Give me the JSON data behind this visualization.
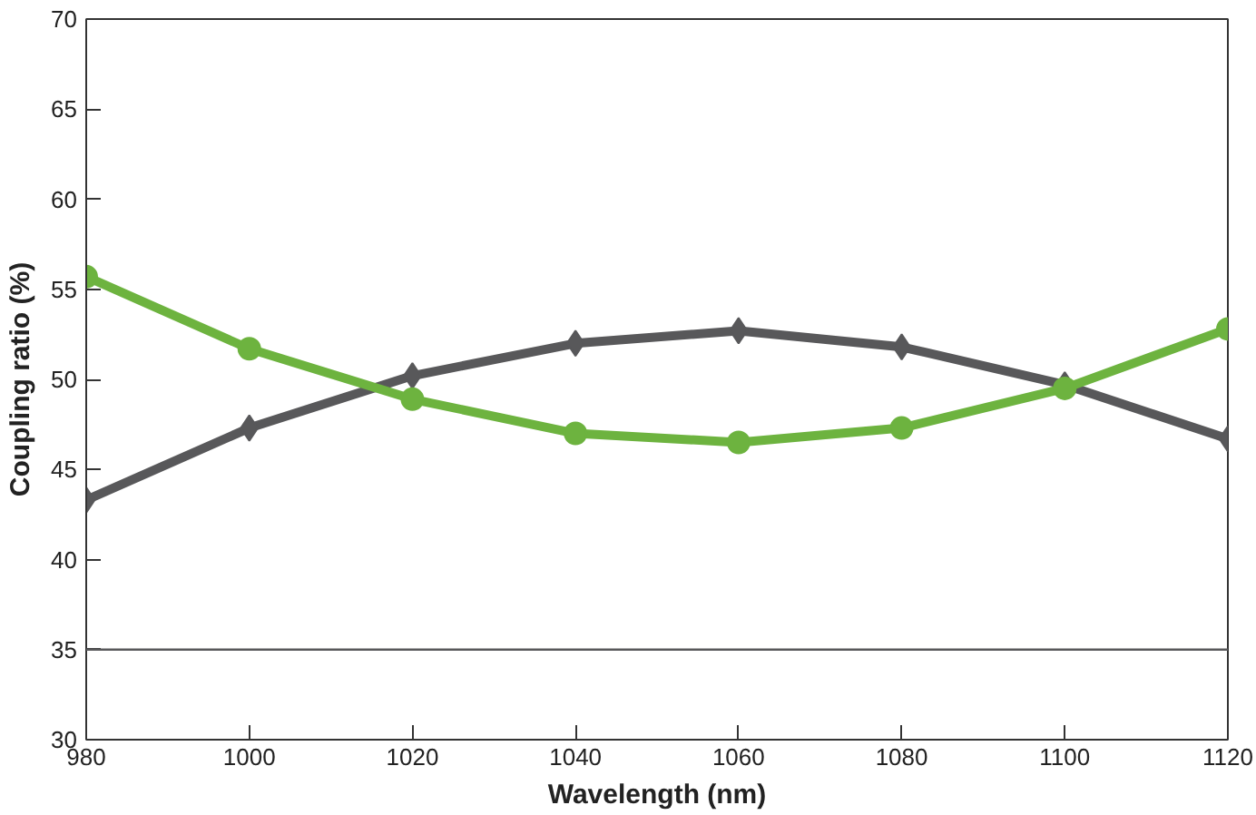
{
  "chart_data": {
    "type": "line",
    "xlabel": "Wavelength (nm)",
    "ylabel": "Coupling ratio (%)",
    "x": [
      980,
      1000,
      1020,
      1040,
      1060,
      1080,
      1100,
      1120
    ],
    "series": [
      {
        "color": "#58585a",
        "marker": "diamond",
        "values": [
          43.3,
          47.3,
          50.2,
          52.0,
          52.7,
          51.8,
          49.7,
          46.7
        ]
      },
      {
        "color": "#6db33f",
        "marker": "circle",
        "values": [
          55.7,
          51.7,
          48.9,
          47.0,
          46.5,
          47.3,
          49.5,
          52.8
        ]
      }
    ],
    "xlim": [
      980,
      1120
    ],
    "xticks": [
      980,
      1000,
      1020,
      1040,
      1060,
      1080,
      1100,
      1120
    ],
    "ylim": [
      30,
      70
    ],
    "yticks": [
      30,
      35,
      40,
      45,
      50,
      55,
      60,
      65,
      70
    ],
    "ref_lines": [
      {
        "axis": "y",
        "value": 35,
        "color": "#58585a"
      }
    ],
    "grid": false
  }
}
